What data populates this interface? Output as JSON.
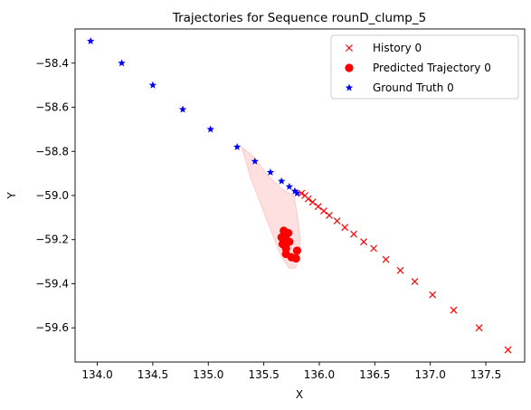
{
  "chart_data": {
    "type": "scatter",
    "title": "Trajectories for Sequence rounD_clump_5",
    "xlabel": "X",
    "ylabel": "Y",
    "xlim": [
      133.8,
      137.85
    ],
    "ylim": [
      -59.755,
      -58.245
    ],
    "xticks": [
      134.0,
      134.5,
      135.0,
      135.5,
      136.0,
      136.5,
      137.0,
      137.5
    ],
    "xtick_labels": [
      "134.0",
      "134.5",
      "135.0",
      "135.5",
      "136.0",
      "136.5",
      "137.0",
      "137.5"
    ],
    "yticks": [
      -59.6,
      -59.4,
      -59.2,
      -59.0,
      -58.8,
      -58.6,
      -58.4
    ],
    "ytick_labels": [
      "−59.6",
      "−59.4",
      "−59.2",
      "−59.0",
      "−58.8",
      "−58.6",
      "−58.4"
    ],
    "grid": false,
    "legend_position": "top-right",
    "series": [
      {
        "name": "History 0",
        "marker": "x",
        "color": "#ff0000",
        "points": [
          [
            137.7,
            -59.7
          ],
          [
            137.44,
            -59.6
          ],
          [
            137.21,
            -59.52
          ],
          [
            137.02,
            -59.45
          ],
          [
            136.86,
            -59.39
          ],
          [
            136.73,
            -59.34
          ],
          [
            136.6,
            -59.29
          ],
          [
            136.49,
            -59.24
          ],
          [
            136.4,
            -59.21
          ],
          [
            136.31,
            -59.175
          ],
          [
            136.23,
            -59.145
          ],
          [
            136.16,
            -59.115
          ],
          [
            136.09,
            -59.09
          ],
          [
            136.04,
            -59.07
          ],
          [
            135.99,
            -59.05
          ],
          [
            135.94,
            -59.03
          ],
          [
            135.9,
            -59.015
          ],
          [
            135.87,
            -59.0
          ],
          [
            135.84,
            -58.99
          ]
        ]
      },
      {
        "name": "Predicted Trajectory 0",
        "marker": "o",
        "color": "#ff0000",
        "points": [
          [
            135.68,
            -59.16
          ],
          [
            135.72,
            -59.17
          ],
          [
            135.7,
            -59.18
          ],
          [
            135.66,
            -59.19
          ],
          [
            135.7,
            -59.2
          ],
          [
            135.73,
            -59.21
          ],
          [
            135.67,
            -59.22
          ],
          [
            135.7,
            -59.24
          ],
          [
            135.8,
            -59.25
          ],
          [
            135.7,
            -59.265
          ],
          [
            135.75,
            -59.28
          ],
          [
            135.79,
            -59.285
          ]
        ]
      },
      {
        "name": "Ground Truth 0",
        "marker": "*",
        "color": "#0000ff",
        "points": [
          [
            133.94,
            -58.3
          ],
          [
            134.22,
            -58.4
          ],
          [
            134.5,
            -58.5
          ],
          [
            134.77,
            -58.61
          ],
          [
            135.02,
            -58.7
          ],
          [
            135.26,
            -58.78
          ],
          [
            135.42,
            -58.845
          ],
          [
            135.56,
            -58.895
          ],
          [
            135.66,
            -58.935
          ],
          [
            135.73,
            -58.96
          ],
          [
            135.78,
            -58.98
          ],
          [
            135.8,
            -58.99
          ]
        ]
      }
    ],
    "uncertainty_region": {
      "color": "#ff0000",
      "opacity": 0.12,
      "points": [
        [
          135.3,
          -58.78
        ],
        [
          135.4,
          -58.82
        ],
        [
          135.54,
          -58.91
        ],
        [
          135.66,
          -58.97
        ],
        [
          135.77,
          -59.0
        ],
        [
          135.8,
          -59.08
        ],
        [
          135.83,
          -59.2
        ],
        [
          135.82,
          -59.29
        ],
        [
          135.78,
          -59.33
        ],
        [
          135.73,
          -59.33
        ],
        [
          135.66,
          -59.28
        ],
        [
          135.58,
          -59.18
        ],
        [
          135.48,
          -59.05
        ],
        [
          135.38,
          -58.92
        ]
      ]
    }
  }
}
